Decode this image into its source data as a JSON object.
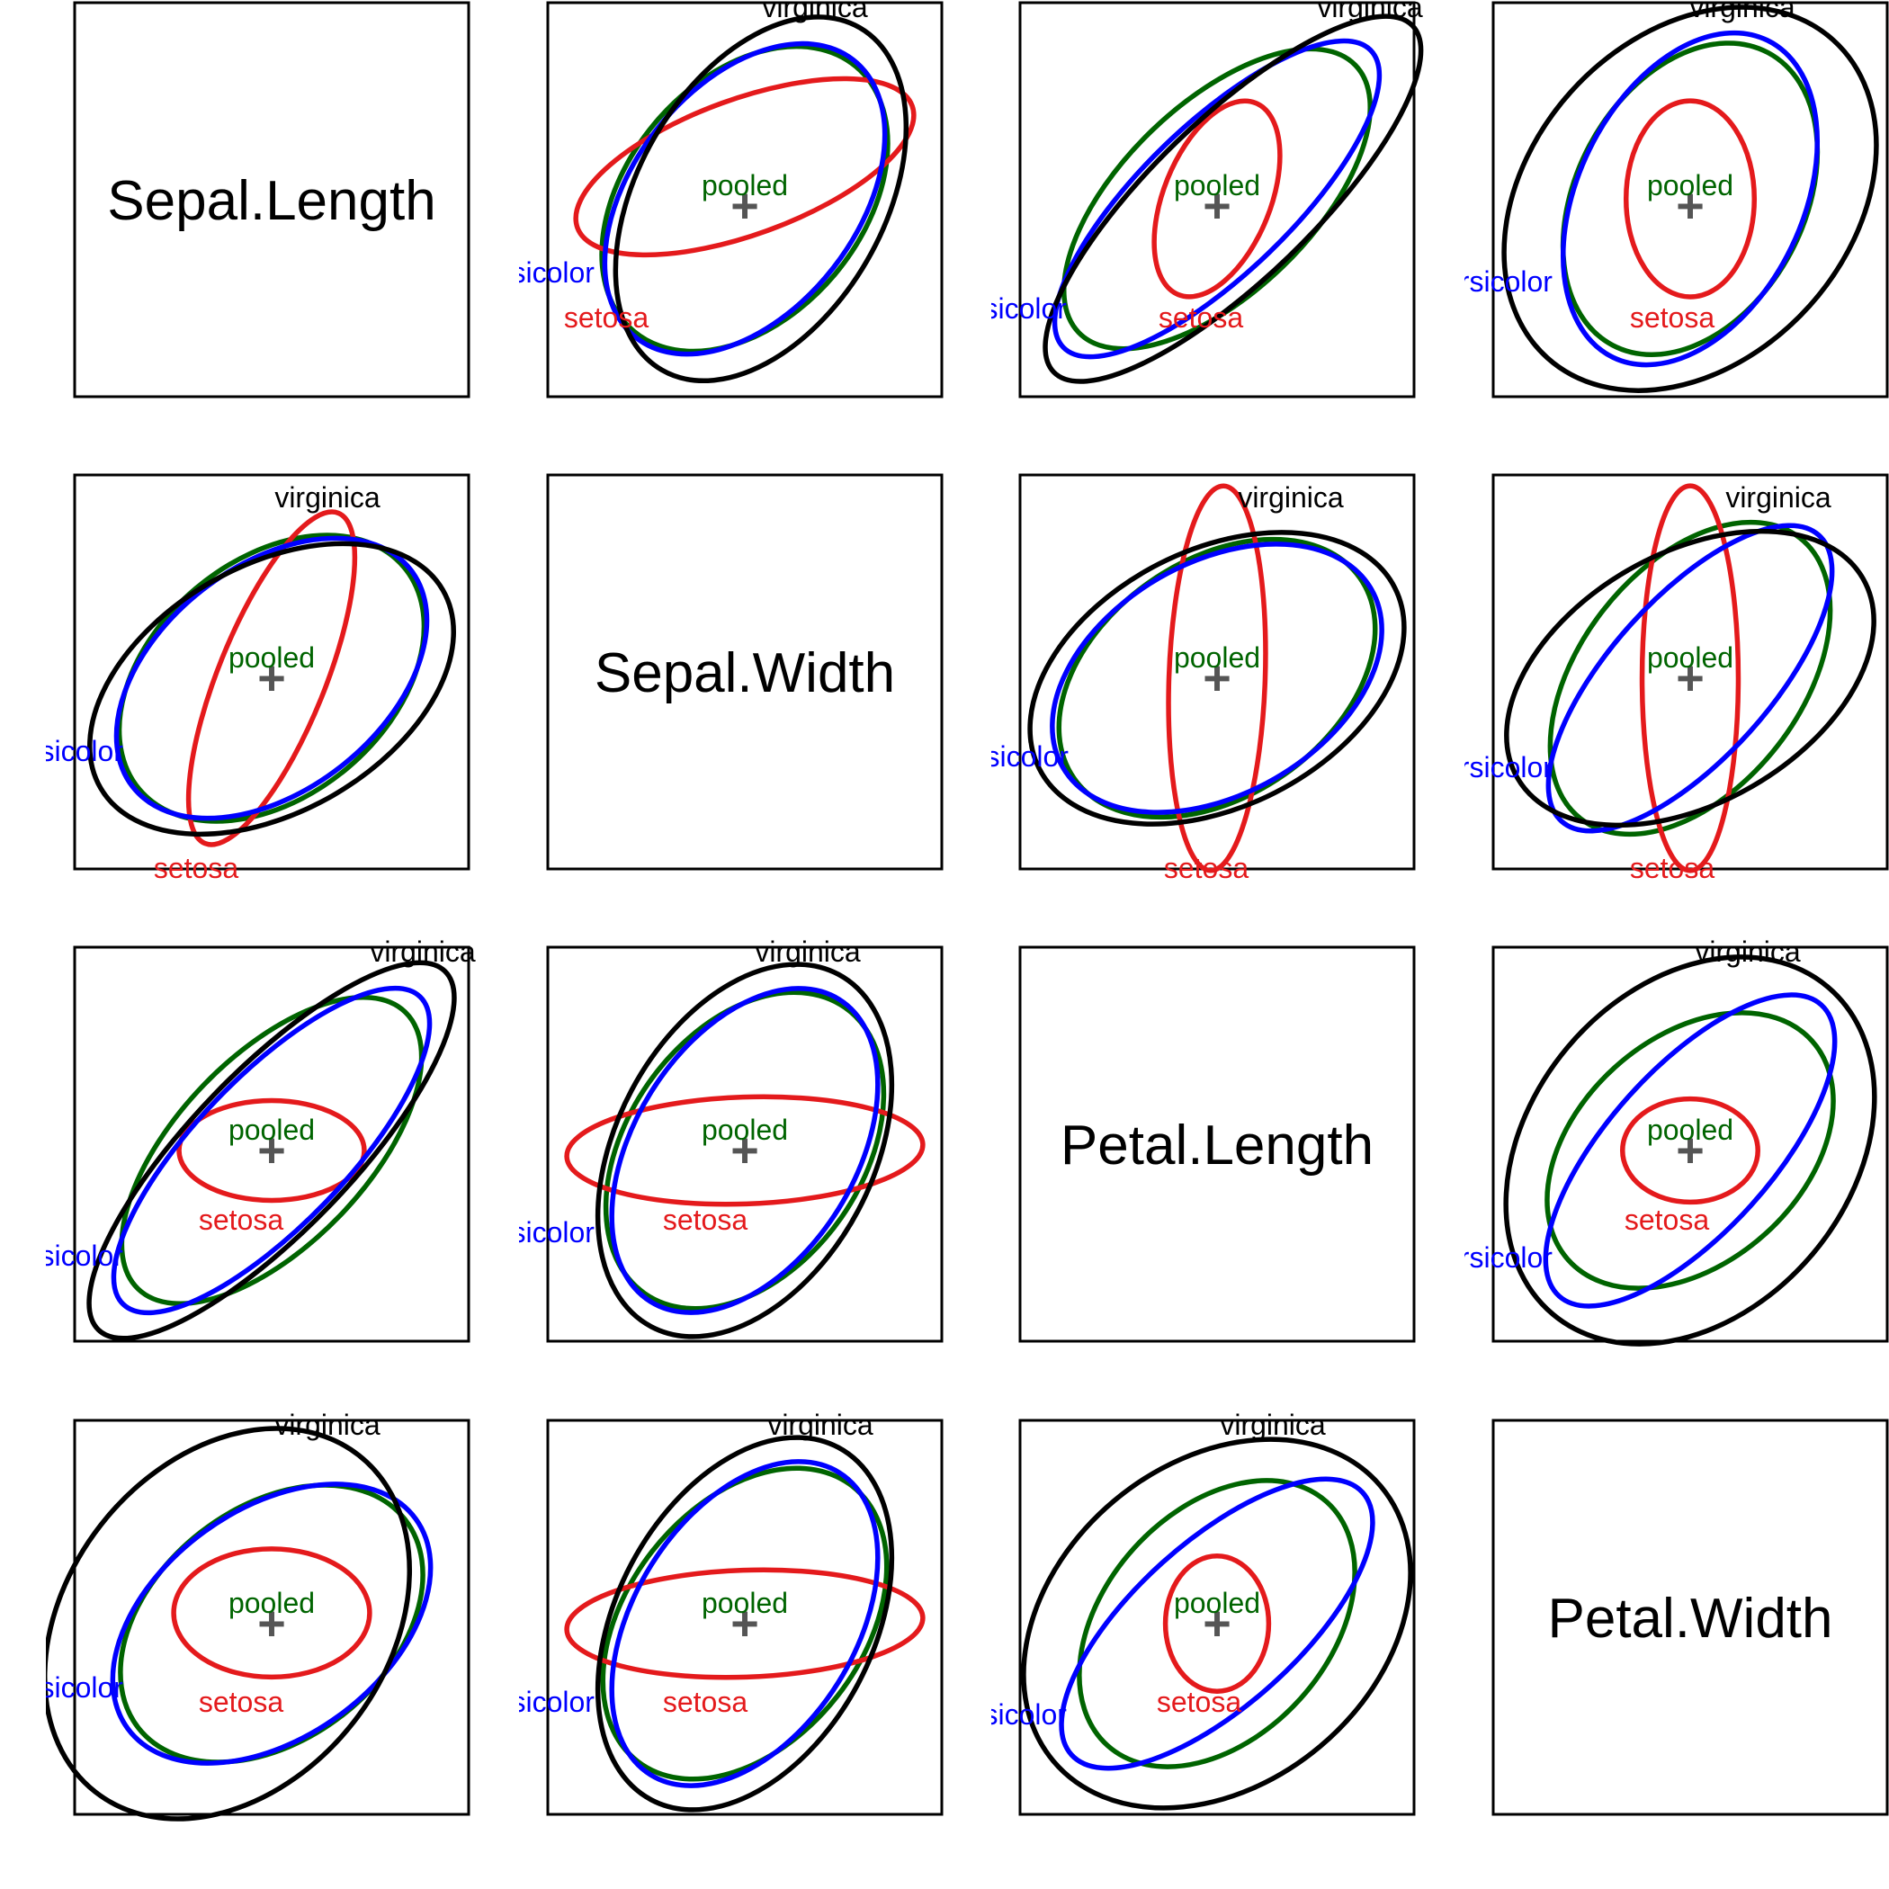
{
  "chart_data": {
    "type": "covariance-ellipse-matrix",
    "variables": [
      "Sepal.Length",
      "Sepal.Width",
      "Petal.Length",
      "Petal.Width"
    ],
    "groups": [
      {
        "name": "setosa",
        "color": "#e41a1c"
      },
      {
        "name": "versicolor",
        "color": "#0000ff"
      },
      {
        "name": "virginica",
        "color": "#000000"
      },
      {
        "name": "pooled",
        "color": "#006400",
        "fill": "#e2efe2"
      }
    ],
    "center_marker": "+",
    "center_color": "#555555",
    "grid": false,
    "ellipses": [
      {
        "row": 0,
        "col": 1,
        "ellipses": [
          {
            "group": "setosa",
            "cx": 0.0,
            "cy": 0.22,
            "rx": 1.0,
            "ry": 0.38,
            "angle": -20
          },
          {
            "group": "versicolor",
            "cx": 0.0,
            "cy": 0.04,
            "rx": 0.99,
            "ry": 0.63,
            "angle": -52
          },
          {
            "group": "virginica",
            "cx": 0.09,
            "cy": 0.04,
            "rx": 1.11,
            "ry": 0.69,
            "angle": -60
          },
          {
            "group": "pooled",
            "cx": 0.0,
            "cy": 0.04,
            "rx": 0.97,
            "ry": 0.66,
            "angle": -50
          }
        ]
      },
      {
        "row": 0,
        "col": 2,
        "ellipses": [
          {
            "group": "setosa",
            "cx": 0.0,
            "cy": 0.04,
            "rx": 0.58,
            "ry": 0.3,
            "angle": -68
          },
          {
            "group": "versicolor",
            "cx": 0.0,
            "cy": 0.04,
            "rx": 1.2,
            "ry": 0.42,
            "angle": -44
          },
          {
            "group": "virginica",
            "cx": 0.09,
            "cy": 0.04,
            "rx": 1.4,
            "ry": 0.45,
            "angle": -44
          },
          {
            "group": "pooled",
            "cx": 0.0,
            "cy": 0.04,
            "rx": 1.08,
            "ry": 0.53,
            "angle": -44
          }
        ]
      },
      {
        "row": 0,
        "col": 3,
        "ellipses": [
          {
            "group": "setosa",
            "cx": 0.0,
            "cy": 0.04,
            "rx": 0.55,
            "ry": 0.36,
            "angle": -90
          },
          {
            "group": "versicolor",
            "cx": 0.0,
            "cy": 0.04,
            "rx": 0.99,
            "ry": 0.63,
            "angle": -64
          },
          {
            "group": "virginica",
            "cx": 0.0,
            "cy": 0.04,
            "rx": 1.2,
            "ry": 0.9,
            "angle": -48
          },
          {
            "group": "pooled",
            "cx": 0.0,
            "cy": 0.04,
            "rx": 0.93,
            "ry": 0.64,
            "angle": -62
          }
        ]
      },
      {
        "row": 1,
        "col": 0,
        "ellipses": [
          {
            "group": "setosa",
            "cx": 0.0,
            "cy": 0.0,
            "rx": 1.0,
            "ry": 0.3,
            "angle": -68
          },
          {
            "group": "versicolor",
            "cx": 0.0,
            "cy": 0.0,
            "rx": 0.99,
            "ry": 0.63,
            "angle": -38
          },
          {
            "group": "virginica",
            "cx": 0.0,
            "cy": -0.06,
            "rx": 1.11,
            "ry": 0.69,
            "angle": -30
          },
          {
            "group": "pooled",
            "cx": 0.0,
            "cy": 0.0,
            "rx": 0.97,
            "ry": 0.66,
            "angle": -40
          }
        ]
      },
      {
        "row": 1,
        "col": 2,
        "ellipses": [
          {
            "group": "setosa",
            "cx": 0.0,
            "cy": 0.0,
            "rx": 1.08,
            "ry": 0.27,
            "angle": -88
          },
          {
            "group": "versicolor",
            "cx": 0.0,
            "cy": 0.0,
            "rx": 1.0,
            "ry": 0.65,
            "angle": -30
          },
          {
            "group": "virginica",
            "cx": 0.0,
            "cy": 0.0,
            "rx": 1.12,
            "ry": 0.72,
            "angle": -27
          },
          {
            "group": "pooled",
            "cx": 0.0,
            "cy": 0.0,
            "rx": 0.98,
            "ry": 0.66,
            "angle": -35
          }
        ]
      },
      {
        "row": 1,
        "col": 3,
        "ellipses": [
          {
            "group": "setosa",
            "cx": 0.0,
            "cy": 0.0,
            "rx": 1.08,
            "ry": 0.27,
            "angle": -90
          },
          {
            "group": "versicolor",
            "cx": 0.0,
            "cy": 0.0,
            "rx": 1.08,
            "ry": 0.45,
            "angle": -48
          },
          {
            "group": "virginica",
            "cx": 0.0,
            "cy": 0.0,
            "rx": 1.12,
            "ry": 0.7,
            "angle": -30
          },
          {
            "group": "pooled",
            "cx": 0.0,
            "cy": 0.0,
            "rx": 1.0,
            "ry": 0.62,
            "angle": -52
          }
        ]
      },
      {
        "row": 2,
        "col": 0,
        "ellipses": [
          {
            "group": "setosa",
            "cx": 0.0,
            "cy": 0.0,
            "rx": 0.52,
            "ry": 0.28,
            "angle": 0
          },
          {
            "group": "versicolor",
            "cx": 0.0,
            "cy": 0.0,
            "rx": 1.2,
            "ry": 0.42,
            "angle": -46
          },
          {
            "group": "virginica",
            "cx": 0.0,
            "cy": 0.0,
            "rx": 1.4,
            "ry": 0.45,
            "angle": -46
          },
          {
            "group": "pooled",
            "cx": 0.0,
            "cy": 0.0,
            "rx": 1.08,
            "ry": 0.53,
            "angle": -46
          }
        ]
      },
      {
        "row": 2,
        "col": 1,
        "ellipses": [
          {
            "group": "setosa",
            "cx": 0.0,
            "cy": 0.0,
            "rx": 1.0,
            "ry": 0.3,
            "angle": -2
          },
          {
            "group": "versicolor",
            "cx": 0.0,
            "cy": 0.0,
            "rx": 1.0,
            "ry": 0.62,
            "angle": -58
          },
          {
            "group": "virginica",
            "cx": 0.0,
            "cy": 0.0,
            "rx": 1.12,
            "ry": 0.72,
            "angle": -62
          },
          {
            "group": "pooled",
            "cx": 0.0,
            "cy": 0.0,
            "rx": 0.98,
            "ry": 0.66,
            "angle": -55
          }
        ]
      },
      {
        "row": 2,
        "col": 3,
        "ellipses": [
          {
            "group": "setosa",
            "cx": 0.0,
            "cy": 0.0,
            "rx": 0.38,
            "ry": 0.29,
            "angle": 0
          },
          {
            "group": "versicolor",
            "cx": 0.0,
            "cy": 0.0,
            "rx": 1.1,
            "ry": 0.46,
            "angle": -48
          },
          {
            "group": "virginica",
            "cx": 0.0,
            "cy": 0.0,
            "rx": 1.2,
            "ry": 0.9,
            "angle": -50
          },
          {
            "group": "pooled",
            "cx": 0.0,
            "cy": 0.0,
            "rx": 0.92,
            "ry": 0.63,
            "angle": -42
          }
        ]
      },
      {
        "row": 3,
        "col": 0,
        "ellipses": [
          {
            "group": "setosa",
            "cx": 0.0,
            "cy": 0.06,
            "rx": 0.55,
            "ry": 0.36,
            "angle": 0
          },
          {
            "group": "versicolor",
            "cx": 0.0,
            "cy": 0.0,
            "rx": 1.0,
            "ry": 0.64,
            "angle": -36
          },
          {
            "group": "virginica",
            "cx": -0.25,
            "cy": 0.0,
            "rx": 1.2,
            "ry": 0.9,
            "angle": -52
          },
          {
            "group": "pooled",
            "cx": 0.0,
            "cy": 0.0,
            "rx": 0.95,
            "ry": 0.65,
            "angle": -38
          }
        ]
      },
      {
        "row": 3,
        "col": 1,
        "ellipses": [
          {
            "group": "setosa",
            "cx": 0.0,
            "cy": 0.0,
            "rx": 1.0,
            "ry": 0.3,
            "angle": -2
          },
          {
            "group": "versicolor",
            "cx": 0.0,
            "cy": 0.0,
            "rx": 1.0,
            "ry": 0.62,
            "angle": -58
          },
          {
            "group": "virginica",
            "cx": 0.0,
            "cy": 0.0,
            "rx": 1.12,
            "ry": 0.72,
            "angle": -62
          },
          {
            "group": "pooled",
            "cx": 0.0,
            "cy": 0.0,
            "rx": 0.98,
            "ry": 0.66,
            "angle": -52
          }
        ]
      },
      {
        "row": 3,
        "col": 2,
        "ellipses": [
          {
            "group": "setosa",
            "cx": 0.0,
            "cy": 0.0,
            "rx": 0.38,
            "ry": 0.29,
            "angle": -90
          },
          {
            "group": "versicolor",
            "cx": 0.0,
            "cy": 0.0,
            "rx": 1.1,
            "ry": 0.46,
            "angle": -42
          },
          {
            "group": "virginica",
            "cx": 0.0,
            "cy": 0.0,
            "rx": 1.2,
            "ry": 0.9,
            "angle": -40
          },
          {
            "group": "pooled",
            "cx": 0.0,
            "cy": 0.0,
            "rx": 0.92,
            "ry": 0.63,
            "angle": -48
          }
        ]
      }
    ]
  }
}
